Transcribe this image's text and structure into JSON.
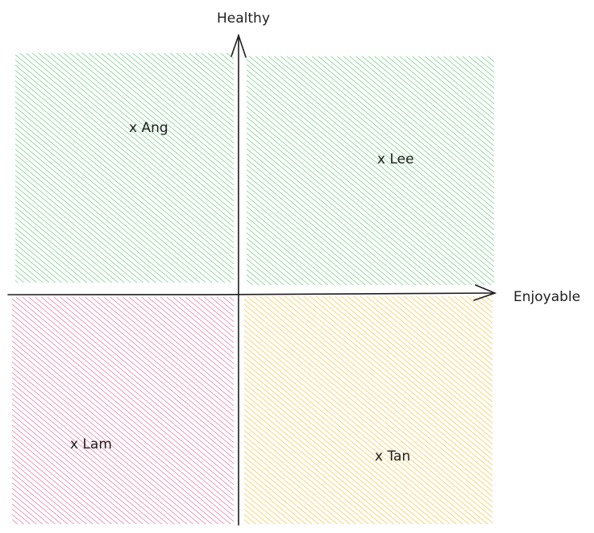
{
  "axes": {
    "y_label": "Healthy",
    "x_label": "Enjoyable"
  },
  "quadrants": [
    {
      "id": "top-left",
      "color": "#40c057"
    },
    {
      "id": "top-right",
      "color": "#40c057"
    },
    {
      "id": "bottom-left",
      "color": "#e64980"
    },
    {
      "id": "bottom-right",
      "color": "#fab005"
    }
  ],
  "points": [
    {
      "label": "x Ang"
    },
    {
      "label": "x Lee"
    },
    {
      "label": "x Lam"
    },
    {
      "label": "x Tan"
    }
  ],
  "stroke_color": "#1e1e1e"
}
